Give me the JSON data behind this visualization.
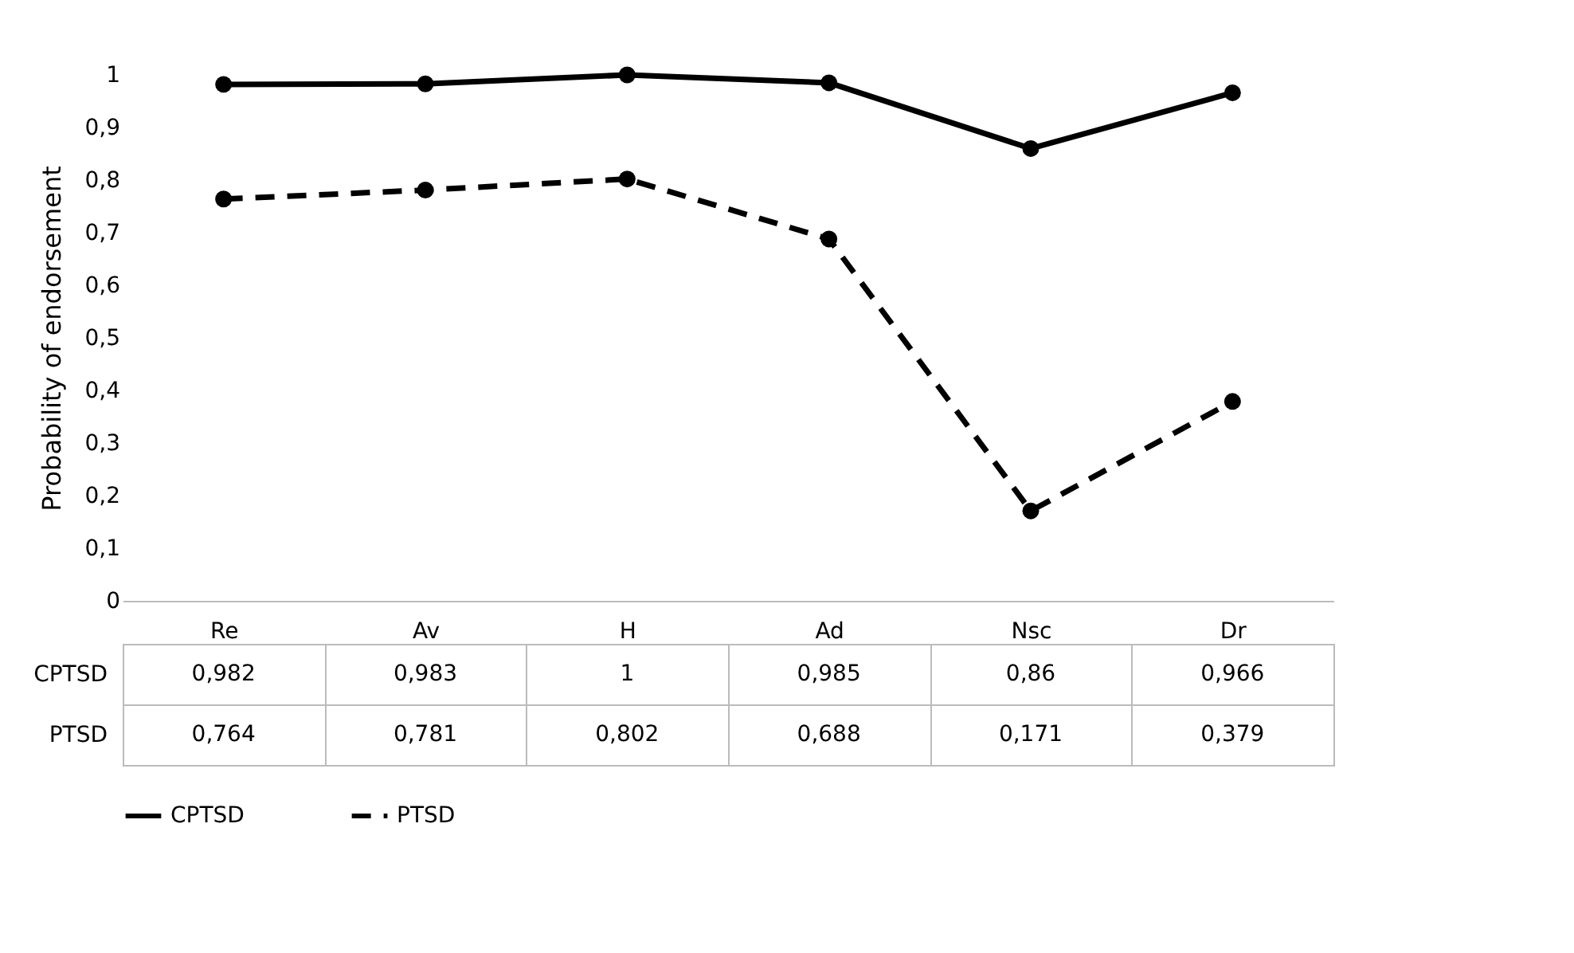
{
  "chart_data": {
    "type": "line",
    "ylabel": "Probability of endorsement",
    "categories": [
      "Re",
      "Av",
      "H",
      "Ad",
      "Nsc",
      "Dr"
    ],
    "series": [
      {
        "name": "CPTSD",
        "color": "#000000",
        "line_style": "solid",
        "values": [
          0.982,
          0.983,
          1,
          0.985,
          0.86,
          0.966
        ],
        "value_labels": [
          "0,982",
          "0,983",
          "1",
          "0,985",
          "0,86",
          "0,966"
        ]
      },
      {
        "name": "PTSD",
        "color": "#000000",
        "line_style": "dashed",
        "values": [
          0.764,
          0.781,
          0.802,
          0.688,
          0.171,
          0.379
        ],
        "value_labels": [
          "0,764",
          "0,781",
          "0,802",
          "0,688",
          "0,171",
          "0,379"
        ]
      }
    ],
    "ylim": [
      0,
      1
    ],
    "yticks": [
      0,
      {
        "value": 0.1,
        "label": "0,1"
      },
      {
        "value": 0.2,
        "label": "0,2"
      },
      {
        "value": 0.3,
        "label": "0,3"
      },
      {
        "value": 0.4,
        "label": "0,4"
      },
      {
        "value": 0.5,
        "label": "0,5"
      },
      {
        "value": 0.6,
        "label": "0,6"
      },
      {
        "value": 0.7,
        "label": "0,7"
      },
      {
        "value": 0.8,
        "label": "0,8"
      },
      {
        "value": 0.9,
        "label": "0,9"
      },
      1
    ],
    "grid": false,
    "legend": "bottom",
    "marker": "circle"
  }
}
